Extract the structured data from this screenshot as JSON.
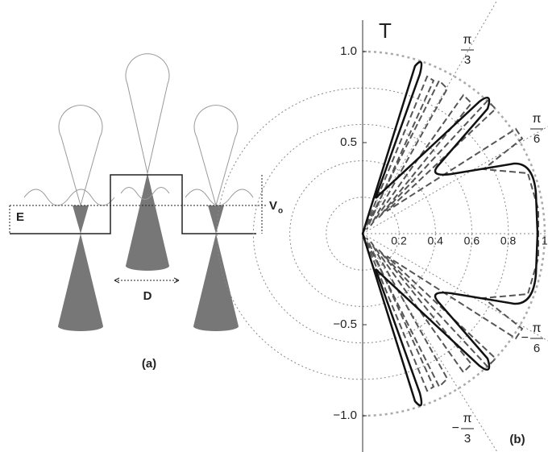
{
  "panel_a": {
    "energy_label": "E",
    "barrier_label": "V",
    "barrier_subscript": "o",
    "width_label": "D",
    "caption": "(a)"
  },
  "panel_b": {
    "axis_label": "T",
    "y_ticks": [
      "1.0",
      "0.5",
      "−0.5",
      "−1.0"
    ],
    "x_ticks": [
      "0.2",
      "0.4",
      "0.6",
      "0.8",
      "1"
    ],
    "angles": [
      {
        "sign": "",
        "numerator": "π",
        "denominator": "3"
      },
      {
        "sign": "",
        "numerator": "π",
        "denominator": "6"
      },
      {
        "sign": "−",
        "numerator": "π",
        "denominator": "6"
      },
      {
        "sign": "−",
        "numerator": "π",
        "denominator": "3"
      }
    ],
    "caption": "(b)"
  }
}
